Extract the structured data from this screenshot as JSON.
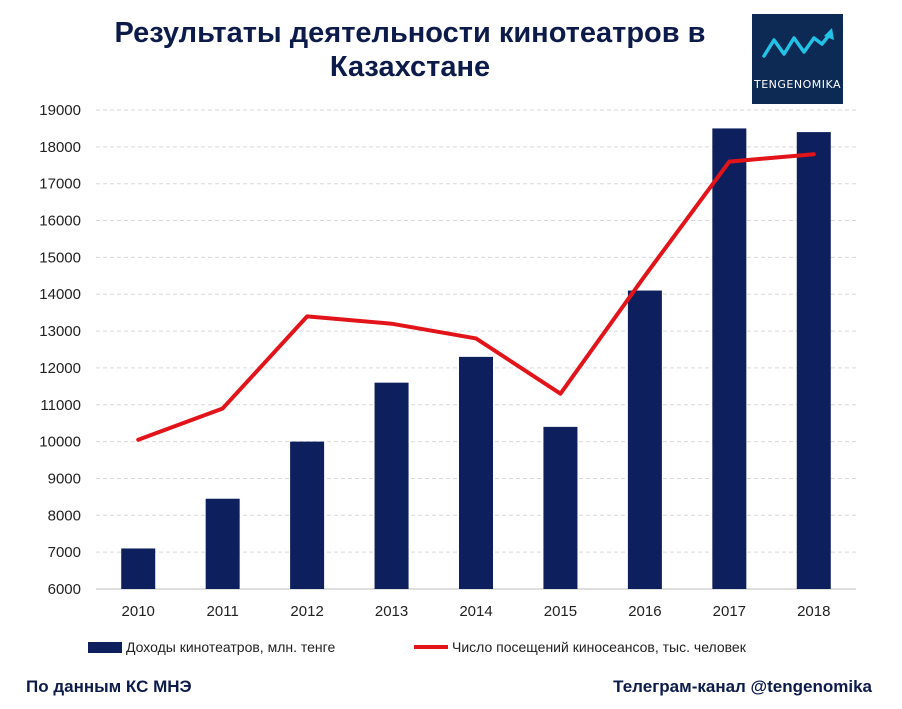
{
  "title": "Результаты деятельности кинотеатров в Казахстане",
  "logo": {
    "text": "TENGENOMIKA"
  },
  "footer": {
    "left": "По данным КС МНЭ",
    "right": "Телеграм-канал @tengenomika"
  },
  "colors": {
    "bar": "#0d1f5c",
    "line": "#e2141a",
    "title": "#0d1b4b",
    "grid": "#d9d9d9"
  },
  "chart_data": {
    "type": "bar",
    "categories": [
      "2010",
      "2011",
      "2012",
      "2013",
      "2014",
      "2015",
      "2016",
      "2017",
      "2018"
    ],
    "ylim": [
      6000,
      19000
    ],
    "yticks": [
      6000,
      7000,
      8000,
      9000,
      10000,
      11000,
      12000,
      13000,
      14000,
      15000,
      16000,
      17000,
      18000,
      19000
    ],
    "grid": true,
    "legend_position": "bottom",
    "series": [
      {
        "name": "Доходы кинотеатров, млн. тенге",
        "type": "bar",
        "values": [
          7100,
          8450,
          10000,
          11600,
          12300,
          10400,
          14100,
          18500,
          18400
        ]
      },
      {
        "name": "Число посещений киносеансов, тыс. человек",
        "type": "line",
        "values": [
          10050,
          10900,
          13400,
          13200,
          12800,
          11300,
          14500,
          17600,
          17800
        ]
      }
    ]
  }
}
